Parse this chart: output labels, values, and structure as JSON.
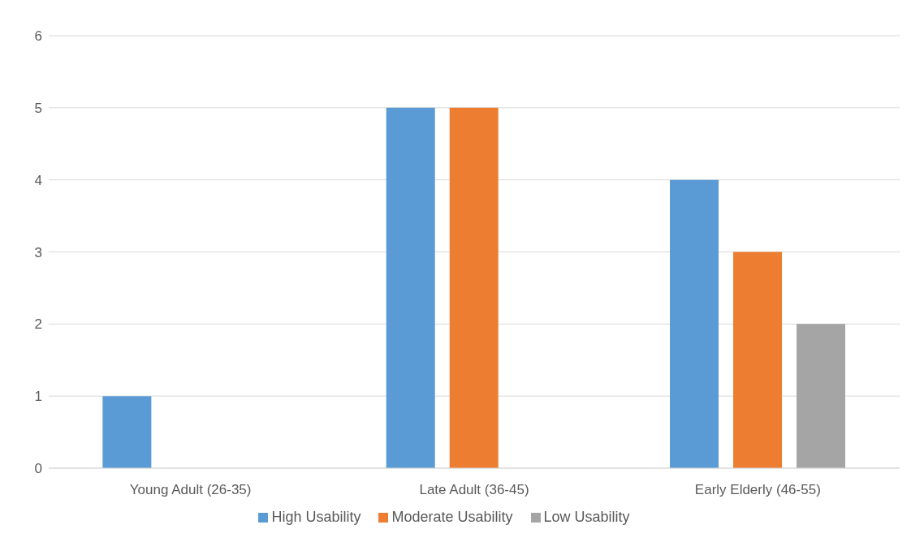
{
  "chart_data": {
    "type": "bar",
    "categories": [
      "Young Adult (26-35)",
      "Late Adult (36-45)",
      "Early Elderly (46-55)"
    ],
    "series": [
      {
        "name": "High Usability",
        "color": "#5b9bd5",
        "values": [
          1,
          5,
          4
        ]
      },
      {
        "name": "Moderate Usability",
        "color": "#ed7d31",
        "values": [
          0,
          5,
          3
        ]
      },
      {
        "name": "Low Usability",
        "color": "#a5a5a5",
        "values": [
          0,
          0,
          2
        ]
      }
    ],
    "ylim": [
      0,
      6
    ],
    "yticks": [
      0,
      1,
      2,
      3,
      4,
      5,
      6
    ],
    "grid": "y",
    "legend": "bottom"
  }
}
